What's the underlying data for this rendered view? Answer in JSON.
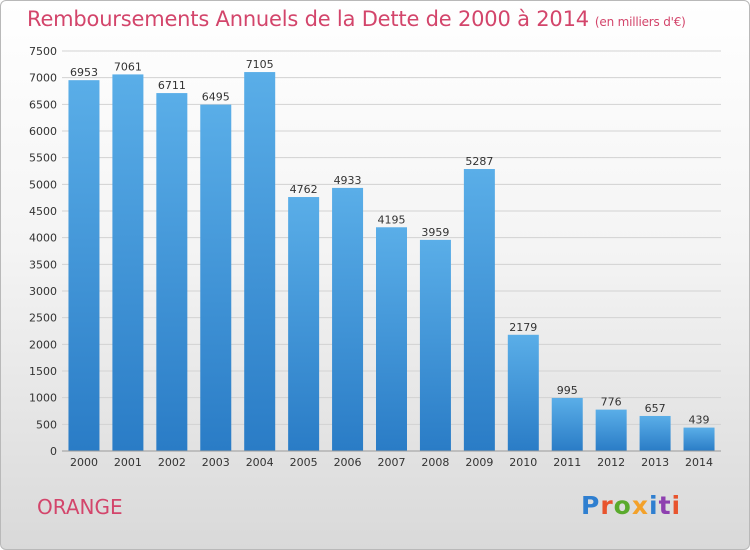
{
  "header": {
    "title": "Remboursements Annuels de la Dette de 2000 à 2014",
    "subtitle": "(en milliers d'€)"
  },
  "footer": {
    "city": "ORANGE",
    "brand": "Proxiti",
    "brand_colors": [
      "#2f7fd0",
      "#e8542e",
      "#5aaa2d",
      "#f3a12a",
      "#2f7fd0",
      "#8e3fb0",
      "#e8542e"
    ]
  },
  "chart_data": {
    "type": "bar",
    "categories": [
      "2000",
      "2001",
      "2002",
      "2003",
      "2004",
      "2005",
      "2006",
      "2007",
      "2008",
      "2009",
      "2010",
      "2011",
      "2012",
      "2013",
      "2014"
    ],
    "values": [
      6953,
      7061,
      6711,
      6495,
      7105,
      4762,
      4933,
      4195,
      3959,
      5287,
      2179,
      995,
      776,
      657,
      439
    ],
    "data_labels": [
      "6953",
      "7061",
      "6711",
      "6495",
      "7105",
      "4762",
      "4933",
      "4195",
      "3959",
      "5287",
      "2179",
      "995",
      "776",
      "657",
      "439"
    ],
    "ylim": [
      0,
      7500
    ],
    "yticks": [
      "0",
      "500",
      "1000",
      "1500",
      "2000",
      "2500",
      "3000",
      "3500",
      "4000",
      "4500",
      "5000",
      "5500",
      "6000",
      "6500",
      "7000",
      "7500"
    ],
    "grid": true,
    "bar_color_top": "#5aaee8",
    "bar_color_bottom": "#2a7cc6"
  }
}
